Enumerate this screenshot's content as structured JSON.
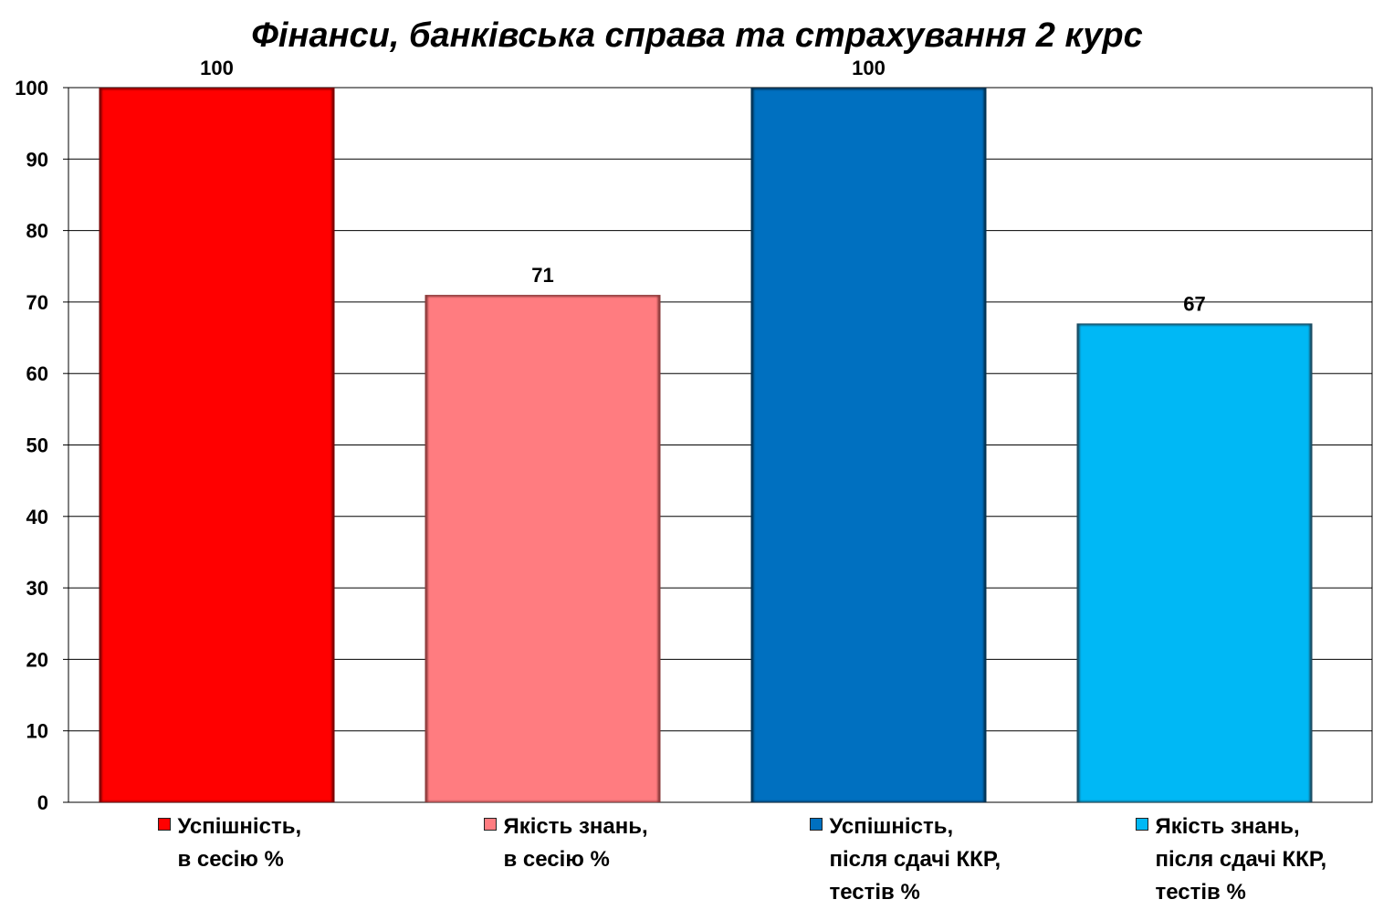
{
  "chart_data": {
    "type": "bar",
    "title": "Фінанси, банківська справа та страхування 2 курс",
    "xlabel": "",
    "ylabel": "",
    "ylim": [
      0,
      100
    ],
    "yticks": [
      "0",
      "10",
      "20",
      "30",
      "40",
      "50",
      "60",
      "70",
      "80",
      "90",
      "100"
    ],
    "grid": true,
    "legend_position": "bottom",
    "bars": [
      {
        "legend_lines": [
          "Успішність,",
          "в сесію %"
        ],
        "value": 100,
        "label": "100",
        "color": "#ff0000",
        "edge": "#7a0000"
      },
      {
        "legend_lines": [
          "Якість знань,",
          "в сесію %"
        ],
        "value": 71,
        "label": "71",
        "color": "#ff7c80",
        "edge": "#8a3a3a"
      },
      {
        "legend_lines": [
          "Успішність,",
          "після сдачі ККР,",
          "тестів %"
        ],
        "value": 100,
        "label": "100",
        "color": "#0070c0",
        "edge": "#003050"
      },
      {
        "legend_lines": [
          "Якість знань,",
          "після сдачі ККР,",
          "тестів %"
        ],
        "value": 67,
        "label": "67",
        "color": "#00b8f5",
        "edge": "#1a4a60"
      }
    ]
  }
}
